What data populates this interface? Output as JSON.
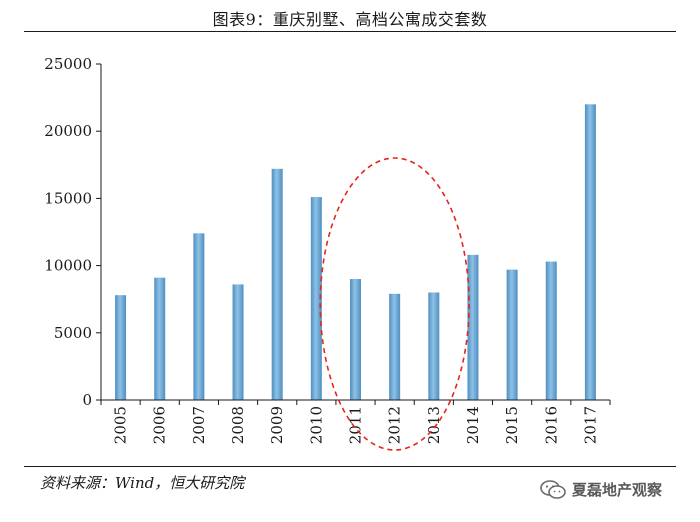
{
  "page": {
    "title": "图表9：重庆别墅、高档公寓成交套数",
    "source": "资料来源：Wind，恒大研究院",
    "watermark": "夏磊地产观察",
    "watermark_icon": "wechat-icon"
  },
  "colors": {
    "bar": "#4f8fc0",
    "bar_highlight": "#8ec1e6",
    "annotation": "#e8231b",
    "axis": "#1a1a1a"
  },
  "chart_data": {
    "type": "bar",
    "title": "图表9：重庆别墅、高档公寓成交套数",
    "xlabel": "",
    "ylabel": "",
    "categories": [
      "2005",
      "2006",
      "2007",
      "2008",
      "2009",
      "2010",
      "2011",
      "2012",
      "2013",
      "2014",
      "2015",
      "2016",
      "2017"
    ],
    "values": [
      7800,
      9100,
      12400,
      8600,
      17200,
      15100,
      9000,
      7900,
      8000,
      10800,
      9700,
      10300,
      22000
    ],
    "ylim": [
      0,
      25000
    ],
    "yticks": [
      0,
      5000,
      10000,
      15000,
      20000,
      25000
    ],
    "grid": false,
    "annotation": {
      "shape": "dashed-ellipse",
      "highlights": [
        "2011",
        "2012",
        "2013"
      ]
    }
  }
}
